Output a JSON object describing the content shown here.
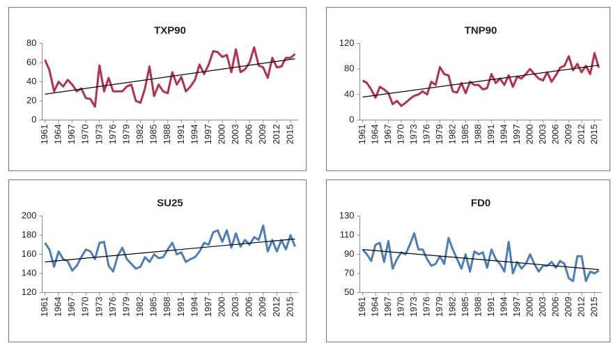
{
  "chart_data": [
    {
      "type": "line",
      "title": "TXP90",
      "color": "#b5304a",
      "trend_color": "#000000",
      "x": [
        1961,
        1962,
        1963,
        1964,
        1965,
        1966,
        1967,
        1968,
        1969,
        1970,
        1971,
        1972,
        1973,
        1974,
        1975,
        1976,
        1977,
        1978,
        1979,
        1980,
        1981,
        1982,
        1983,
        1984,
        1985,
        1986,
        1987,
        1988,
        1989,
        1990,
        1991,
        1992,
        1993,
        1994,
        1995,
        1996,
        1997,
        1998,
        1999,
        2000,
        2001,
        2002,
        2003,
        2004,
        2005,
        2006,
        2007,
        2008,
        2009,
        2010,
        2011,
        2012,
        2013,
        2014,
        2015,
        2016
      ],
      "values": [
        63,
        52,
        30,
        40,
        35,
        42,
        37,
        30,
        33,
        23,
        22,
        14,
        57,
        30,
        44,
        30,
        30,
        30,
        35,
        37,
        20,
        18,
        33,
        56,
        25,
        37,
        30,
        28,
        50,
        37,
        45,
        30,
        35,
        42,
        58,
        48,
        58,
        72,
        71,
        66,
        68,
        50,
        74,
        50,
        53,
        60,
        76,
        57,
        55,
        44,
        65,
        55,
        56,
        65,
        65,
        69
      ],
      "trend": [
        27,
        64
      ],
      "xlim": [
        1961,
        2016
      ],
      "xticks": [
        1961,
        1964,
        1967,
        1970,
        1973,
        1976,
        1979,
        1982,
        1985,
        1988,
        1991,
        1994,
        1997,
        2000,
        2003,
        2006,
        2009,
        2012,
        2015
      ],
      "ylim": [
        0,
        80
      ],
      "yticks": [
        0,
        20,
        40,
        60,
        80
      ]
    },
    {
      "type": "line",
      "title": "TNP90",
      "color": "#b5304a",
      "trend_color": "#000000",
      "x": [
        1961,
        1962,
        1963,
        1964,
        1965,
        1966,
        1967,
        1968,
        1969,
        1970,
        1971,
        1972,
        1973,
        1974,
        1975,
        1976,
        1977,
        1978,
        1979,
        1980,
        1981,
        1982,
        1983,
        1984,
        1985,
        1986,
        1987,
        1988,
        1989,
        1990,
        1991,
        1992,
        1993,
        1994,
        1995,
        1996,
        1997,
        1998,
        1999,
        2000,
        2001,
        2002,
        2003,
        2004,
        2005,
        2006,
        2007,
        2008,
        2009,
        2010,
        2011,
        2012,
        2013,
        2014,
        2015,
        2016
      ],
      "values": [
        62,
        58,
        48,
        35,
        52,
        48,
        42,
        25,
        30,
        22,
        27,
        33,
        38,
        40,
        45,
        40,
        60,
        55,
        83,
        72,
        70,
        45,
        43,
        58,
        42,
        60,
        55,
        55,
        48,
        50,
        72,
        58,
        65,
        55,
        70,
        52,
        68,
        65,
        72,
        80,
        72,
        65,
        62,
        75,
        60,
        70,
        82,
        85,
        100,
        78,
        88,
        75,
        85,
        72,
        105,
        82
      ],
      "trend": [
        36,
        86
      ],
      "xlim": [
        1961,
        2016
      ],
      "xticks": [
        1961,
        1964,
        1967,
        1970,
        1973,
        1976,
        1979,
        1982,
        1985,
        1988,
        1991,
        1994,
        1997,
        2000,
        2003,
        2006,
        2009,
        2012,
        2015
      ],
      "ylim": [
        0,
        120
      ],
      "yticks": [
        0,
        40,
        80,
        120
      ]
    },
    {
      "type": "line",
      "title": "SU25",
      "color": "#4a7ebb",
      "trend_color": "#000000",
      "x": [
        1961,
        1962,
        1963,
        1964,
        1965,
        1966,
        1967,
        1968,
        1969,
        1970,
        1971,
        1972,
        1973,
        1974,
        1975,
        1976,
        1977,
        1978,
        1979,
        1980,
        1981,
        1982,
        1983,
        1984,
        1985,
        1986,
        1987,
        1988,
        1989,
        1990,
        1991,
        1992,
        1993,
        1994,
        1995,
        1996,
        1997,
        1998,
        1999,
        2000,
        2001,
        2002,
        2003,
        2004,
        2005,
        2006,
        2007,
        2008,
        2009,
        2010,
        2011,
        2012,
        2013,
        2014,
        2015,
        2016
      ],
      "values": [
        172,
        165,
        147,
        163,
        155,
        153,
        143,
        148,
        157,
        165,
        163,
        155,
        172,
        173,
        148,
        142,
        158,
        167,
        155,
        150,
        145,
        147,
        157,
        152,
        160,
        156,
        157,
        165,
        172,
        160,
        162,
        152,
        155,
        157,
        163,
        172,
        170,
        183,
        185,
        173,
        185,
        167,
        182,
        168,
        175,
        170,
        178,
        175,
        190,
        163,
        175,
        163,
        175,
        165,
        180,
        168
      ],
      "trend": [
        152,
        176
      ],
      "xlim": [
        1961,
        2016
      ],
      "xticks": [
        1961,
        1964,
        1967,
        1970,
        1973,
        1976,
        1979,
        1982,
        1985,
        1988,
        1991,
        1994,
        1997,
        2000,
        2003,
        2006,
        2009,
        2012,
        2015
      ],
      "ylim": [
        120,
        200
      ],
      "yticks": [
        120,
        140,
        160,
        180,
        200
      ]
    },
    {
      "type": "line",
      "title": "FD0",
      "color": "#4a7ebb",
      "trend_color": "#000000",
      "x": [
        1961,
        1962,
        1963,
        1964,
        1965,
        1966,
        1967,
        1968,
        1969,
        1970,
        1971,
        1972,
        1973,
        1974,
        1975,
        1976,
        1977,
        1978,
        1979,
        1980,
        1981,
        1982,
        1983,
        1984,
        1985,
        1986,
        1987,
        1988,
        1989,
        1990,
        1991,
        1992,
        1993,
        1994,
        1995,
        1996,
        1997,
        1998,
        1999,
        2000,
        2001,
        2002,
        2003,
        2004,
        2005,
        2006,
        2007,
        2008,
        2009,
        2010,
        2011,
        2012,
        2013,
        2014,
        2015,
        2016
      ],
      "values": [
        95,
        90,
        83,
        100,
        102,
        82,
        104,
        75,
        85,
        92,
        90,
        100,
        112,
        95,
        95,
        85,
        78,
        80,
        88,
        80,
        107,
        95,
        85,
        75,
        90,
        72,
        93,
        90,
        92,
        76,
        95,
        85,
        80,
        72,
        103,
        70,
        82,
        75,
        80,
        90,
        80,
        72,
        78,
        78,
        82,
        76,
        83,
        80,
        65,
        62,
        88,
        88,
        62,
        72,
        70,
        73
      ],
      "trend": [
        95,
        74
      ],
      "xlim": [
        1961,
        2016
      ],
      "xticks": [
        1961,
        1964,
        1967,
        1970,
        1973,
        1976,
        1979,
        1982,
        1985,
        1988,
        1991,
        1994,
        1997,
        2000,
        2003,
        2006,
        2009,
        2012,
        2015
      ],
      "ylim": [
        50,
        130
      ],
      "yticks": [
        50,
        70,
        90,
        110,
        130
      ]
    }
  ]
}
